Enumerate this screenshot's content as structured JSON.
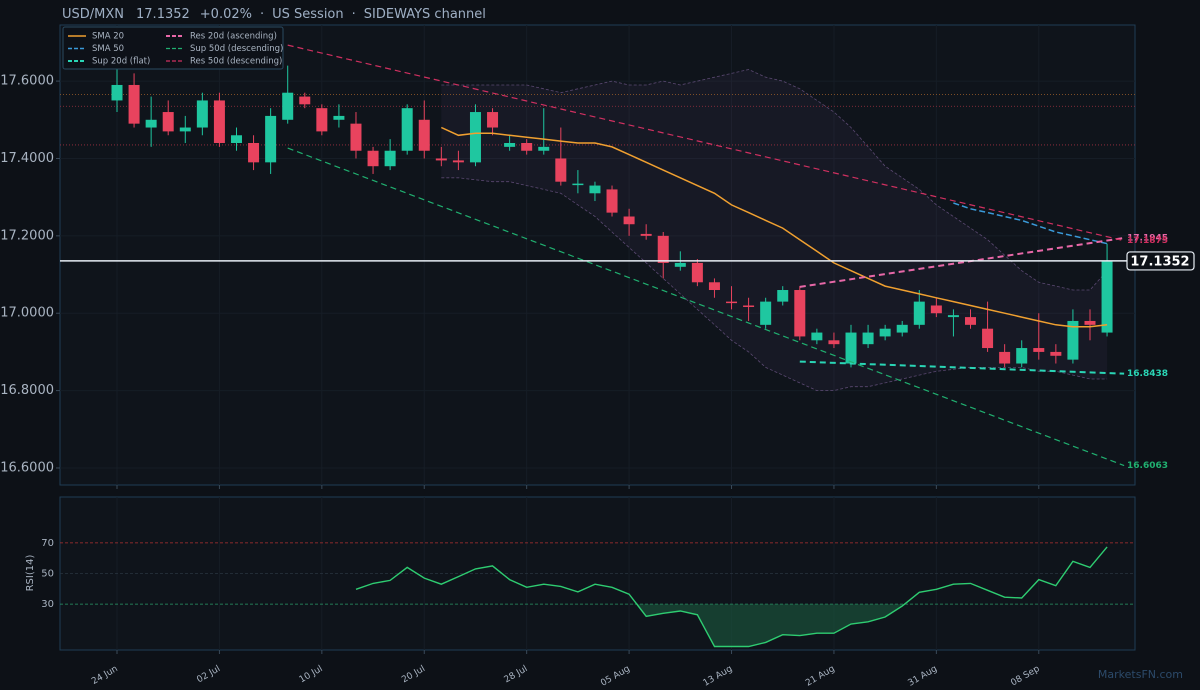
{
  "chart_data": [
    {
      "type": "candlestick",
      "symbol": "USD/MXN",
      "price": 17.1352,
      "change": "+0.02%",
      "separator": "·",
      "session": "US Session",
      "channel": "SIDEWAYS channel",
      "categories": [
        "24 Jun",
        null,
        null,
        null,
        null,
        null,
        "02 Jul",
        null,
        null,
        null,
        null,
        null,
        "10 Jul",
        null,
        null,
        null,
        null,
        null,
        "20 Jul",
        null,
        null,
        null,
        null,
        null,
        "28 Jul",
        null,
        null,
        null,
        null,
        null,
        "05 Aug",
        null,
        null,
        null,
        null,
        null,
        "13 Aug",
        null,
        null,
        null,
        null,
        null,
        "21 Aug",
        null,
        null,
        null,
        null,
        null,
        "31 Aug",
        null,
        null,
        null,
        null,
        null,
        "08 Sep",
        null,
        null,
        null,
        null
      ],
      "open": [
        17.55,
        17.59,
        17.48,
        17.52,
        17.47,
        17.48,
        17.55,
        17.44,
        17.44,
        17.39,
        17.5,
        17.56,
        17.53,
        17.5,
        17.49,
        17.42,
        17.38,
        17.42,
        17.5,
        17.4,
        17.395,
        17.39,
        17.52,
        17.43,
        17.44,
        17.42,
        17.4,
        17.335,
        17.31,
        17.32,
        17.25,
        17.205,
        17.2,
        17.12,
        17.13,
        17.08,
        17.03,
        17.02,
        16.97,
        17.03,
        17.06,
        16.93,
        16.93,
        16.87,
        16.92,
        16.94,
        16.95,
        16.97,
        17.02,
        16.99,
        16.99,
        16.96,
        16.9,
        16.87,
        16.91,
        16.9,
        16.88,
        16.98,
        16.95
      ],
      "high": [
        17.63,
        17.62,
        17.56,
        17.55,
        17.51,
        17.57,
        17.57,
        17.48,
        17.46,
        17.53,
        17.64,
        17.57,
        17.54,
        17.54,
        17.52,
        17.43,
        17.45,
        17.54,
        17.55,
        17.43,
        17.42,
        17.54,
        17.53,
        17.46,
        17.45,
        17.53,
        17.48,
        17.37,
        17.34,
        17.33,
        17.27,
        17.23,
        17.21,
        17.16,
        17.14,
        17.09,
        17.07,
        17.04,
        17.04,
        17.07,
        17.07,
        16.96,
        16.95,
        16.97,
        16.97,
        16.97,
        16.98,
        17.06,
        17.04,
        17.01,
        17.01,
        17.03,
        16.92,
        16.93,
        17.0,
        16.92,
        17.01,
        17.01,
        17.18
      ],
      "low": [
        17.52,
        17.48,
        17.43,
        17.46,
        17.44,
        17.46,
        17.43,
        17.42,
        17.37,
        17.36,
        17.49,
        17.53,
        17.46,
        17.48,
        17.4,
        17.36,
        17.37,
        17.41,
        17.4,
        17.38,
        17.37,
        17.38,
        17.46,
        17.42,
        17.41,
        17.41,
        17.33,
        17.31,
        17.29,
        17.25,
        17.2,
        17.19,
        17.09,
        17.11,
        17.07,
        17.04,
        17.01,
        16.98,
        16.96,
        17.02,
        16.93,
        16.92,
        16.91,
        16.86,
        16.91,
        16.93,
        16.94,
        16.96,
        16.99,
        16.94,
        16.96,
        16.9,
        16.86,
        16.86,
        16.88,
        16.87,
        16.87,
        16.93,
        16.94
      ],
      "close": [
        17.59,
        17.49,
        17.5,
        17.47,
        17.48,
        17.55,
        17.44,
        17.46,
        17.39,
        17.51,
        17.57,
        17.54,
        17.47,
        17.51,
        17.42,
        17.38,
        17.42,
        17.53,
        17.42,
        17.395,
        17.39,
        17.52,
        17.48,
        17.44,
        17.42,
        17.43,
        17.34,
        17.335,
        17.33,
        17.26,
        17.23,
        17.2,
        17.13,
        17.13,
        17.08,
        17.06,
        17.028,
        17.018,
        17.03,
        17.06,
        16.94,
        16.95,
        16.92,
        16.95,
        16.95,
        16.96,
        16.97,
        17.03,
        17.0,
        16.995,
        16.97,
        16.91,
        16.87,
        16.91,
        16.9,
        16.89,
        16.98,
        16.97,
        17.135
      ],
      "up_color": "#1fc7a0",
      "down_color": "#e8435e",
      "ylim": [
        16.556,
        17.745
      ],
      "yticks": [
        {
          "value": 16.6,
          "label": "16.6000"
        },
        {
          "value": 16.8,
          "label": "16.8000"
        },
        {
          "value": 17.0,
          "label": "17.0000"
        },
        {
          "value": 17.2,
          "label": "17.2000"
        },
        {
          "value": 17.4,
          "label": "17.4000"
        },
        {
          "value": 17.6,
          "label": "17.6000"
        }
      ],
      "band": {
        "color": "#8a6aa8",
        "upper": [
          null,
          null,
          null,
          null,
          null,
          null,
          null,
          null,
          null,
          null,
          null,
          null,
          null,
          null,
          null,
          null,
          null,
          null,
          null,
          17.59,
          17.59,
          17.59,
          17.59,
          17.59,
          17.59,
          17.58,
          17.57,
          17.58,
          17.59,
          17.6,
          17.59,
          17.59,
          17.6,
          17.59,
          17.6,
          17.61,
          17.62,
          17.63,
          17.61,
          17.6,
          17.58,
          17.55,
          17.52,
          17.48,
          17.43,
          17.38,
          17.35,
          17.32,
          17.28,
          17.25,
          17.22,
          17.19,
          17.15,
          17.11,
          17.08,
          17.07,
          17.06,
          17.06,
          17.11
        ],
        "lower": [
          null,
          null,
          null,
          null,
          null,
          null,
          null,
          null,
          null,
          null,
          null,
          null,
          null,
          null,
          null,
          null,
          null,
          null,
          null,
          17.35,
          17.35,
          17.345,
          17.34,
          17.34,
          17.33,
          17.32,
          17.31,
          17.28,
          17.25,
          17.21,
          17.17,
          17.13,
          17.09,
          17.05,
          17.01,
          16.97,
          16.93,
          16.9,
          16.86,
          16.84,
          16.82,
          16.8,
          16.8,
          16.81,
          16.81,
          16.82,
          16.83,
          16.84,
          16.85,
          16.855,
          16.86,
          16.86,
          16.86,
          16.86,
          16.85,
          16.85,
          16.84,
          16.83,
          16.83
        ]
      },
      "levels": [
        {
          "value": 17.565,
          "color": "#a0602a"
        },
        {
          "value": 17.535,
          "color": "#a03040"
        },
        {
          "value": 17.435,
          "color": "#a03040"
        }
      ],
      "series": [
        {
          "name": "SMA 20",
          "color": "#f0a030",
          "style": "solid",
          "values": [
            null,
            null,
            null,
            null,
            null,
            null,
            null,
            null,
            null,
            null,
            null,
            null,
            null,
            null,
            null,
            null,
            null,
            null,
            null,
            17.48,
            17.46,
            17.465,
            17.465,
            17.46,
            17.455,
            17.45,
            17.445,
            17.44,
            17.44,
            17.43,
            17.41,
            17.39,
            17.37,
            17.35,
            17.33,
            17.31,
            17.28,
            17.26,
            17.24,
            17.22,
            17.19,
            17.16,
            17.13,
            17.11,
            17.09,
            17.07,
            17.06,
            17.05,
            17.04,
            17.03,
            17.02,
            17.01,
            17.0,
            16.99,
            16.98,
            16.97,
            16.965,
            16.965,
            16.97
          ]
        },
        {
          "name": "SMA 50",
          "color": "#3a9ad9",
          "style": "dashed",
          "values": [
            null,
            null,
            null,
            null,
            null,
            null,
            null,
            null,
            null,
            null,
            null,
            null,
            null,
            null,
            null,
            null,
            null,
            null,
            null,
            null,
            null,
            null,
            null,
            null,
            null,
            null,
            null,
            null,
            null,
            null,
            null,
            null,
            null,
            null,
            null,
            null,
            null,
            null,
            null,
            null,
            null,
            null,
            null,
            null,
            null,
            null,
            null,
            null,
            null,
            17.285,
            17.27,
            17.26,
            17.25,
            17.24,
            17.225,
            17.21,
            17.2,
            17.19,
            17.18
          ]
        }
      ],
      "trendlines": [
        {
          "name": "Sup 20d (flat)",
          "color": "#2ad5b5",
          "width": 2,
          "x": [
            40,
            59
          ],
          "values": [
            16.875,
            16.8438
          ]
        },
        {
          "name": "Res 20d (ascending)",
          "color": "#e868a8",
          "width": 2,
          "x": [
            40,
            59
          ],
          "values": [
            17.068,
            17.1945
          ]
        },
        {
          "name": "Sup 50d (descending)",
          "color": "#20b070",
          "width": 1.2,
          "x": [
            10,
            59
          ],
          "values": [
            17.427,
            16.6063
          ]
        },
        {
          "name": "Res 50d (descending)",
          "color": "#d03060",
          "width": 1.2,
          "x": [
            10,
            59
          ],
          "values": [
            17.693,
            17.1875
          ]
        }
      ],
      "watermark": "MarketsFN.com"
    },
    {
      "type": "line",
      "ylabel": "RSI(14)",
      "color": "#2ecc71",
      "oversold_fill": "#1a5a40",
      "ylim": [
        0,
        100
      ],
      "yticks": [
        30,
        50,
        70
      ],
      "ytick_colors": [
        "#2a9d6a",
        "#2a3440",
        "#b03030"
      ],
      "values": [
        null,
        null,
        null,
        null,
        null,
        null,
        null,
        null,
        null,
        null,
        null,
        null,
        null,
        null,
        39.7,
        43.5,
        45.5,
        54,
        47,
        43,
        48,
        53,
        55,
        46,
        41,
        43,
        41.6,
        38,
        43,
        41,
        36.5,
        22,
        24,
        25.5,
        23,
        2.3,
        2.3,
        2.3,
        5,
        10,
        9.4,
        11,
        11,
        17,
        18.4,
        21.6,
        28.7,
        37.7,
        39.7,
        43,
        43.5,
        39,
        34.5,
        34,
        46,
        42,
        58,
        54,
        67.4
      ]
    }
  ]
}
